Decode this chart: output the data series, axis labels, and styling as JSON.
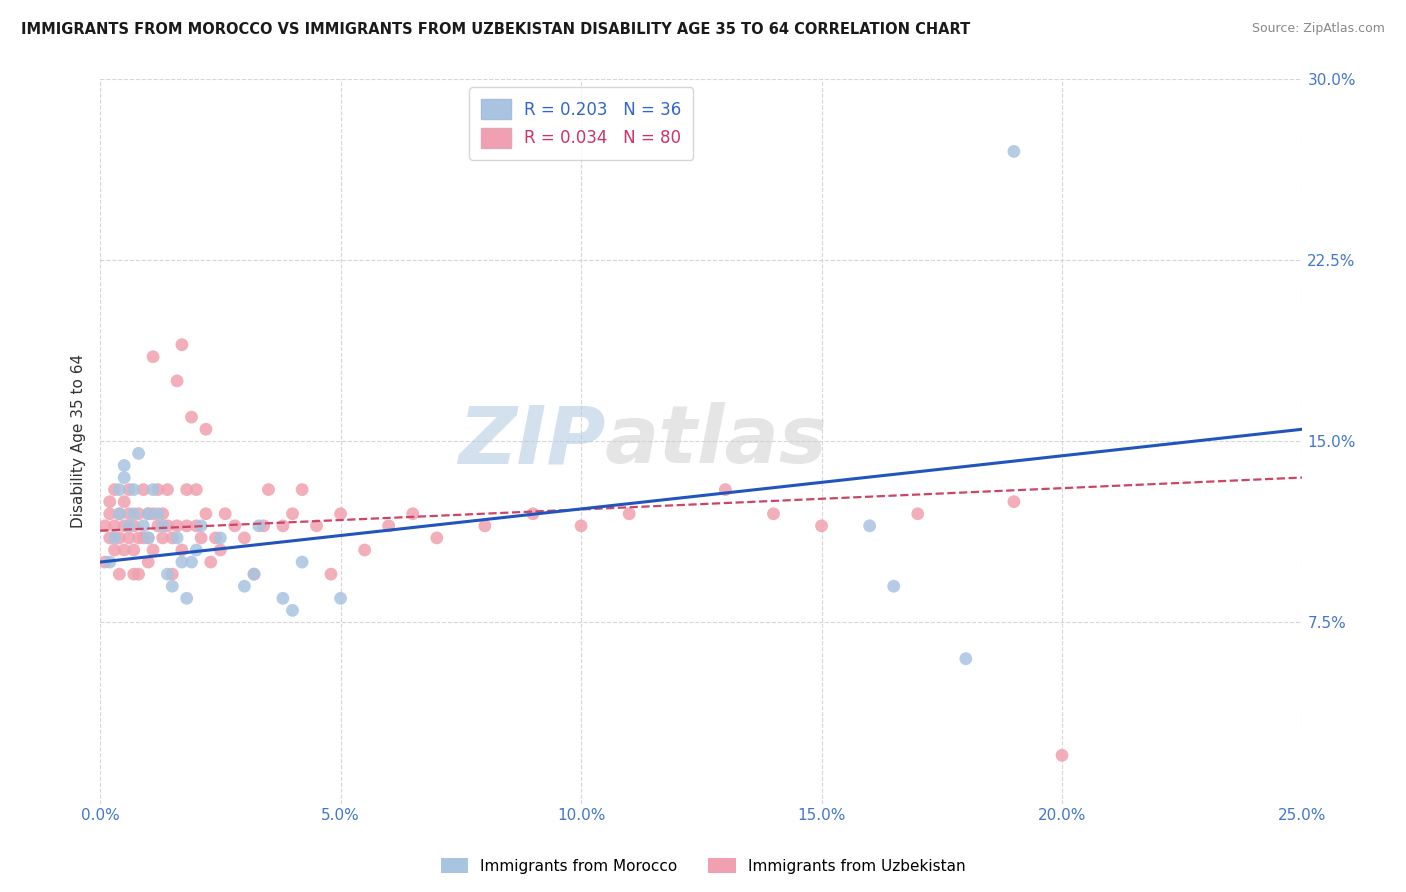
{
  "title": "IMMIGRANTS FROM MOROCCO VS IMMIGRANTS FROM UZBEKISTAN DISABILITY AGE 35 TO 64 CORRELATION CHART",
  "source": "Source: ZipAtlas.com",
  "ylabel": "Disability Age 35 to 64",
  "xlim": [
    0.0,
    0.25
  ],
  "ylim": [
    0.0,
    0.3
  ],
  "xtick_labels": [
    "0.0%",
    "5.0%",
    "10.0%",
    "15.0%",
    "20.0%",
    "25.0%"
  ],
  "xtick_vals": [
    0.0,
    0.05,
    0.1,
    0.15,
    0.2,
    0.25
  ],
  "ytick_labels": [
    "7.5%",
    "15.0%",
    "22.5%",
    "30.0%"
  ],
  "ytick_vals": [
    0.075,
    0.15,
    0.225,
    0.3
  ],
  "morocco_color": "#a8c4e0",
  "uzbekistan_color": "#f0a0b0",
  "morocco_line_color": "#2255bb",
  "uzbekistan_line_color": "#cc4466",
  "morocco_R": 0.203,
  "morocco_N": 36,
  "uzbekistan_R": 0.034,
  "uzbekistan_N": 80,
  "legend_label_1": "Immigrants from Morocco",
  "legend_label_2": "Immigrants from Uzbekistan",
  "watermark_zip": "ZIP",
  "watermark_atlas": "atlas",
  "background_color": "#ffffff",
  "grid_color": "#cccccc",
  "morocco_x": [
    0.002,
    0.003,
    0.004,
    0.004,
    0.005,
    0.005,
    0.006,
    0.007,
    0.007,
    0.008,
    0.009,
    0.01,
    0.01,
    0.011,
    0.012,
    0.013,
    0.014,
    0.015,
    0.016,
    0.017,
    0.018,
    0.019,
    0.02,
    0.021,
    0.025,
    0.03,
    0.032,
    0.033,
    0.038,
    0.04,
    0.042,
    0.05,
    0.16,
    0.165,
    0.18,
    0.19
  ],
  "morocco_y": [
    0.1,
    0.11,
    0.13,
    0.12,
    0.135,
    0.14,
    0.115,
    0.13,
    0.12,
    0.145,
    0.115,
    0.12,
    0.11,
    0.13,
    0.12,
    0.115,
    0.095,
    0.09,
    0.11,
    0.1,
    0.085,
    0.1,
    0.105,
    0.115,
    0.11,
    0.09,
    0.095,
    0.115,
    0.085,
    0.08,
    0.1,
    0.085,
    0.115,
    0.09,
    0.06,
    0.27
  ],
  "uzbekistan_x": [
    0.001,
    0.001,
    0.002,
    0.002,
    0.002,
    0.003,
    0.003,
    0.003,
    0.004,
    0.004,
    0.004,
    0.005,
    0.005,
    0.005,
    0.006,
    0.006,
    0.006,
    0.007,
    0.007,
    0.007,
    0.008,
    0.008,
    0.008,
    0.009,
    0.009,
    0.01,
    0.01,
    0.01,
    0.011,
    0.011,
    0.011,
    0.012,
    0.012,
    0.013,
    0.013,
    0.014,
    0.014,
    0.015,
    0.015,
    0.016,
    0.016,
    0.017,
    0.017,
    0.018,
    0.018,
    0.019,
    0.02,
    0.02,
    0.021,
    0.022,
    0.022,
    0.023,
    0.024,
    0.025,
    0.026,
    0.028,
    0.03,
    0.032,
    0.034,
    0.035,
    0.038,
    0.04,
    0.042,
    0.045,
    0.048,
    0.05,
    0.055,
    0.06,
    0.065,
    0.07,
    0.08,
    0.09,
    0.1,
    0.11,
    0.13,
    0.14,
    0.15,
    0.17,
    0.19,
    0.2
  ],
  "uzbekistan_y": [
    0.1,
    0.115,
    0.125,
    0.11,
    0.12,
    0.105,
    0.115,
    0.13,
    0.12,
    0.11,
    0.095,
    0.125,
    0.115,
    0.105,
    0.11,
    0.12,
    0.13,
    0.105,
    0.115,
    0.095,
    0.12,
    0.11,
    0.095,
    0.13,
    0.11,
    0.12,
    0.1,
    0.11,
    0.105,
    0.12,
    0.185,
    0.115,
    0.13,
    0.11,
    0.12,
    0.13,
    0.115,
    0.11,
    0.095,
    0.115,
    0.175,
    0.19,
    0.105,
    0.115,
    0.13,
    0.16,
    0.115,
    0.13,
    0.11,
    0.155,
    0.12,
    0.1,
    0.11,
    0.105,
    0.12,
    0.115,
    0.11,
    0.095,
    0.115,
    0.13,
    0.115,
    0.12,
    0.13,
    0.115,
    0.095,
    0.12,
    0.105,
    0.115,
    0.12,
    0.11,
    0.115,
    0.12,
    0.115,
    0.12,
    0.13,
    0.12,
    0.115,
    0.12,
    0.125,
    0.02
  ]
}
